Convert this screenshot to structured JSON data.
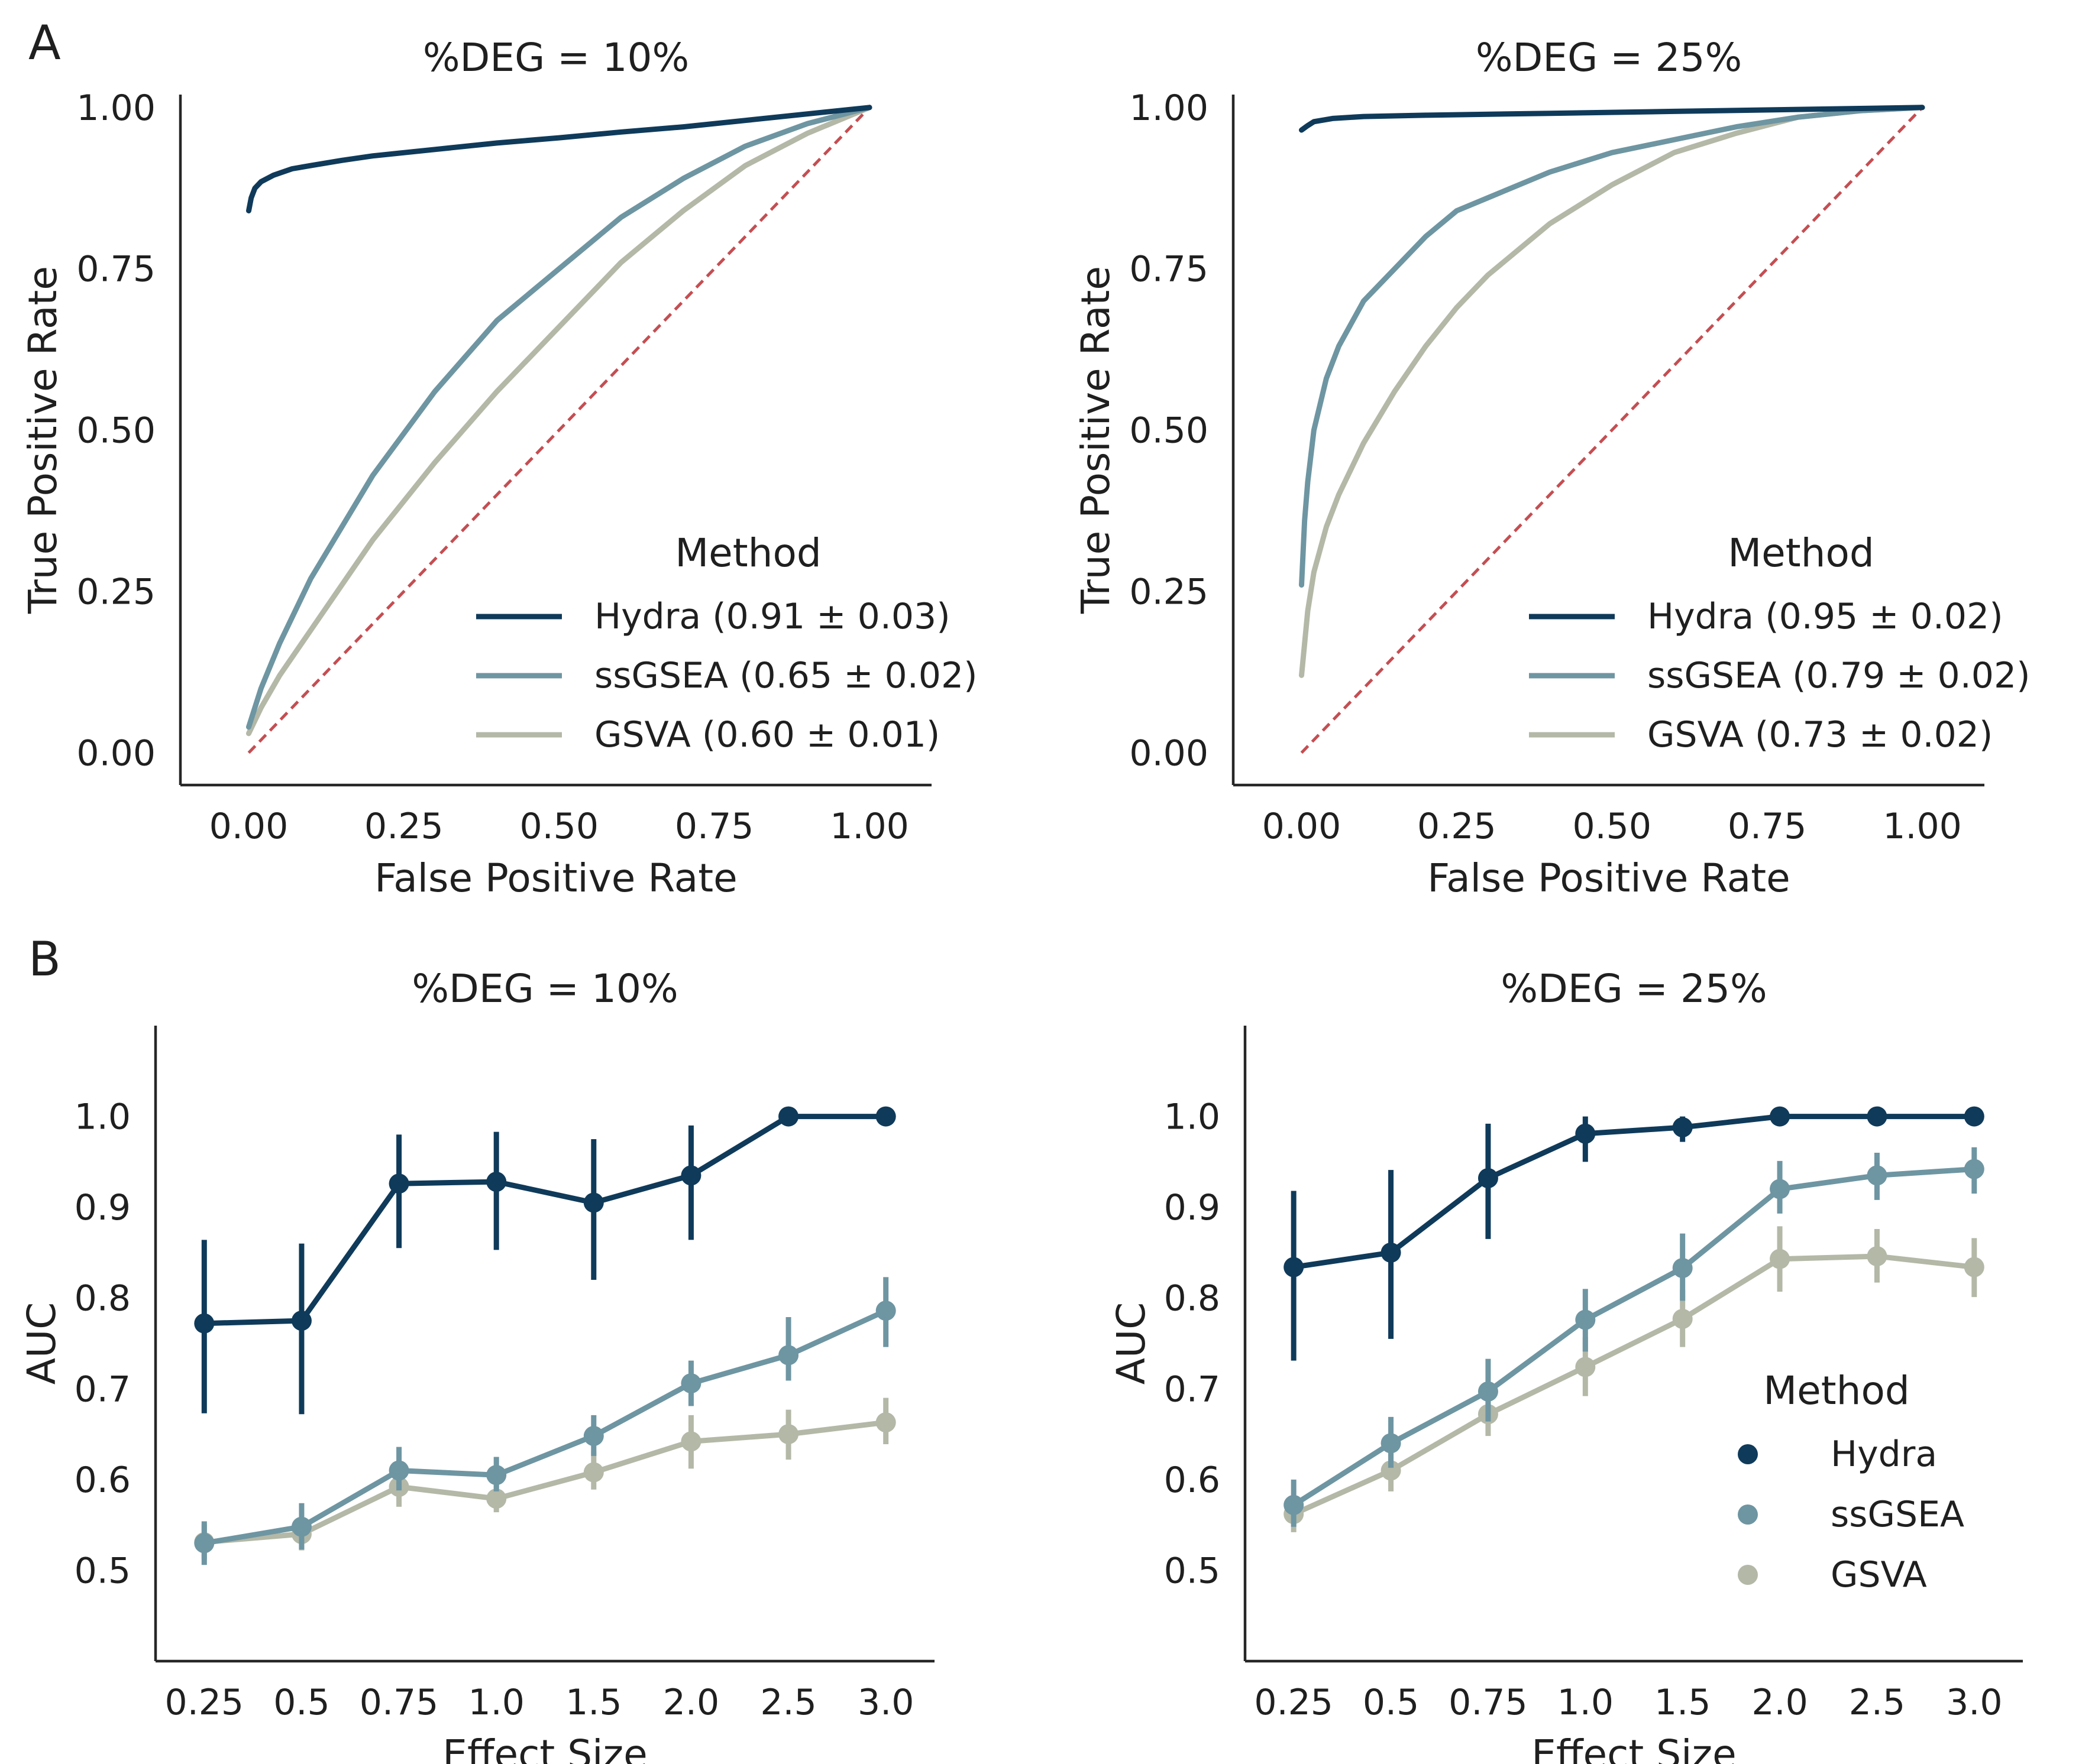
{
  "panels": [
    "A",
    "B"
  ],
  "colors": {
    "Hydra": "#0f3a5a",
    "ssGSEA": "#6e95a2",
    "GSVA": "#b3b8a7",
    "diagonal": "#c44e52"
  },
  "chart_data": [
    {
      "type": "line",
      "panel": "A",
      "title": "%DEG = 10%",
      "xlabel": "False Positive Rate",
      "ylabel": "True Positive Rate",
      "xlim": [
        -0.11,
        1.1
      ],
      "ylim": [
        -0.05,
        1.02
      ],
      "xticks": [
        "0.00",
        "0.25",
        "0.50",
        "0.75",
        "1.00"
      ],
      "yticks": [
        "0.00",
        "0.25",
        "0.50",
        "0.75",
        "1.00"
      ],
      "grid": false,
      "legend_title": "Method",
      "legend_position": "lower-right",
      "reference_line": {
        "x": [
          0,
          1
        ],
        "y": [
          0,
          1
        ],
        "style": "dashed"
      },
      "series": [
        {
          "name": "Hydra",
          "legend_label": "Hydra (0.91 ± 0.03)",
          "x": [
            0,
            0.004,
            0.01,
            0.02,
            0.04,
            0.07,
            0.1,
            0.15,
            0.2,
            0.3,
            0.4,
            0.5,
            0.6,
            0.7,
            0.8,
            0.9,
            1.0
          ],
          "y": [
            0.84,
            0.86,
            0.875,
            0.885,
            0.895,
            0.905,
            0.91,
            0.918,
            0.925,
            0.935,
            0.945,
            0.953,
            0.962,
            0.97,
            0.98,
            0.99,
            1.0
          ]
        },
        {
          "name": "ssGSEA",
          "legend_label": "ssGSEA (0.65 ± 0.02)",
          "x": [
            0,
            0.02,
            0.05,
            0.1,
            0.15,
            0.2,
            0.3,
            0.4,
            0.5,
            0.6,
            0.7,
            0.8,
            0.9,
            1.0
          ],
          "y": [
            0.04,
            0.1,
            0.17,
            0.27,
            0.35,
            0.43,
            0.56,
            0.67,
            0.75,
            0.83,
            0.89,
            0.94,
            0.975,
            1.0
          ]
        },
        {
          "name": "GSVA",
          "legend_label": "GSVA (0.60 ± 0.01)",
          "x": [
            0,
            0.02,
            0.05,
            0.1,
            0.15,
            0.2,
            0.3,
            0.4,
            0.5,
            0.6,
            0.7,
            0.8,
            0.9,
            1.0
          ],
          "y": [
            0.03,
            0.07,
            0.12,
            0.19,
            0.26,
            0.33,
            0.45,
            0.56,
            0.66,
            0.76,
            0.84,
            0.91,
            0.96,
            1.0
          ]
        }
      ]
    },
    {
      "type": "line",
      "panel": "A",
      "title": "%DEG = 25%",
      "xlabel": "False Positive Rate",
      "ylabel": "True Positive Rate",
      "xlim": [
        -0.11,
        1.1
      ],
      "ylim": [
        -0.05,
        1.02
      ],
      "xticks": [
        "0.00",
        "0.25",
        "0.50",
        "0.75",
        "1.00"
      ],
      "yticks": [
        "0.00",
        "0.25",
        "0.50",
        "0.75",
        "1.00"
      ],
      "grid": false,
      "legend_title": "Method",
      "legend_position": "lower-right",
      "reference_line": {
        "x": [
          0,
          1
        ],
        "y": [
          0,
          1
        ],
        "style": "dashed"
      },
      "series": [
        {
          "name": "Hydra",
          "legend_label": "Hydra (0.95 ± 0.02)",
          "x": [
            0,
            0.01,
            0.02,
            0.05,
            0.1,
            0.2,
            0.4,
            0.6,
            0.8,
            1.0
          ],
          "y": [
            0.965,
            0.972,
            0.978,
            0.983,
            0.986,
            0.988,
            0.991,
            0.994,
            0.997,
            1.0
          ]
        },
        {
          "name": "ssGSEA",
          "legend_label": "ssGSEA (0.79 ± 0.02)",
          "x": [
            0,
            0.005,
            0.01,
            0.02,
            0.04,
            0.06,
            0.1,
            0.15,
            0.2,
            0.25,
            0.3,
            0.4,
            0.5,
            0.6,
            0.7,
            0.8,
            0.9,
            1.0
          ],
          "y": [
            0.26,
            0.36,
            0.42,
            0.5,
            0.58,
            0.63,
            0.7,
            0.75,
            0.8,
            0.84,
            0.86,
            0.9,
            0.93,
            0.95,
            0.97,
            0.985,
            0.995,
            1.0
          ]
        },
        {
          "name": "GSVA",
          "legend_label": "GSVA (0.73 ± 0.02)",
          "x": [
            0,
            0.01,
            0.02,
            0.04,
            0.06,
            0.1,
            0.15,
            0.2,
            0.25,
            0.3,
            0.4,
            0.5,
            0.6,
            0.7,
            0.8,
            0.9,
            1.0
          ],
          "y": [
            0.12,
            0.22,
            0.28,
            0.35,
            0.4,
            0.48,
            0.56,
            0.63,
            0.69,
            0.74,
            0.82,
            0.88,
            0.93,
            0.96,
            0.985,
            0.995,
            1.0
          ]
        }
      ]
    },
    {
      "type": "line",
      "panel": "B",
      "title": "%DEG = 10%",
      "xlabel": "Effect Size",
      "ylabel": "AUC",
      "categories": [
        "0.25",
        "0.5",
        "0.75",
        "1.0",
        "1.5",
        "2.0",
        "2.5",
        "3.0"
      ],
      "ylim": [
        0.4,
        1.1
      ],
      "yticks": [
        "0.5",
        "0.6",
        "0.7",
        "0.8",
        "0.9",
        "1.0"
      ],
      "grid": false,
      "series": [
        {
          "name": "Hydra",
          "values": [
            0.772,
            0.775,
            0.926,
            0.928,
            0.905,
            0.935,
            1.0,
            1.0
          ],
          "ci_low": [
            0.673,
            0.672,
            0.855,
            0.853,
            0.82,
            0.864,
            1.0,
            1.0
          ],
          "ci_high": [
            0.864,
            0.86,
            0.98,
            0.983,
            0.975,
            0.99,
            1.0,
            1.0
          ]
        },
        {
          "name": "ssGSEA",
          "values": [
            0.53,
            0.548,
            0.61,
            0.605,
            0.648,
            0.706,
            0.737,
            0.786
          ],
          "ci_low": [
            0.506,
            0.523,
            0.588,
            0.587,
            0.626,
            0.681,
            0.709,
            0.746
          ],
          "ci_high": [
            0.554,
            0.574,
            0.636,
            0.625,
            0.671,
            0.731,
            0.779,
            0.823
          ]
        },
        {
          "name": "GSVA",
          "values": [
            0.531,
            0.54,
            0.592,
            0.579,
            0.608,
            0.642,
            0.65,
            0.663
          ],
          "ci_low": [
            0.512,
            0.522,
            0.57,
            0.564,
            0.589,
            0.612,
            0.622,
            0.639
          ],
          "ci_high": [
            0.551,
            0.559,
            0.619,
            0.598,
            0.631,
            0.671,
            0.677,
            0.69
          ]
        }
      ]
    },
    {
      "type": "line",
      "panel": "B",
      "title": "%DEG = 25%",
      "xlabel": "Effect Size",
      "ylabel": "AUC",
      "categories": [
        "0.25",
        "0.5",
        "0.75",
        "1.0",
        "1.5",
        "2.0",
        "2.5",
        "3.0"
      ],
      "ylim": [
        0.4,
        1.1
      ],
      "yticks": [
        "0.5",
        "0.6",
        "0.7",
        "0.8",
        "0.9",
        "1.0"
      ],
      "grid": false,
      "legend_title": "Method",
      "legend_position": "lower-right",
      "series": [
        {
          "name": "Hydra",
          "values": [
            0.834,
            0.85,
            0.932,
            0.981,
            0.988,
            1.0,
            1.0,
            1.0
          ],
          "ci_low": [
            0.731,
            0.755,
            0.865,
            0.95,
            0.972,
            1.0,
            1.0,
            1.0
          ],
          "ci_high": [
            0.918,
            0.941,
            0.992,
            1.0,
            1.0,
            1.0,
            1.0,
            1.0
          ]
        },
        {
          "name": "ssGSEA",
          "values": [
            0.572,
            0.64,
            0.697,
            0.776,
            0.833,
            0.92,
            0.935,
            0.942
          ],
          "ci_low": [
            0.548,
            0.613,
            0.664,
            0.741,
            0.797,
            0.893,
            0.908,
            0.915
          ],
          "ci_high": [
            0.6,
            0.669,
            0.733,
            0.81,
            0.871,
            0.951,
            0.96,
            0.966
          ]
        },
        {
          "name": "GSVA",
          "values": [
            0.562,
            0.61,
            0.672,
            0.724,
            0.777,
            0.843,
            0.846,
            0.834
          ],
          "ci_low": [
            0.542,
            0.587,
            0.648,
            0.692,
            0.746,
            0.807,
            0.817,
            0.801
          ],
          "ci_high": [
            0.582,
            0.633,
            0.697,
            0.757,
            0.809,
            0.879,
            0.876,
            0.866
          ]
        }
      ]
    }
  ]
}
